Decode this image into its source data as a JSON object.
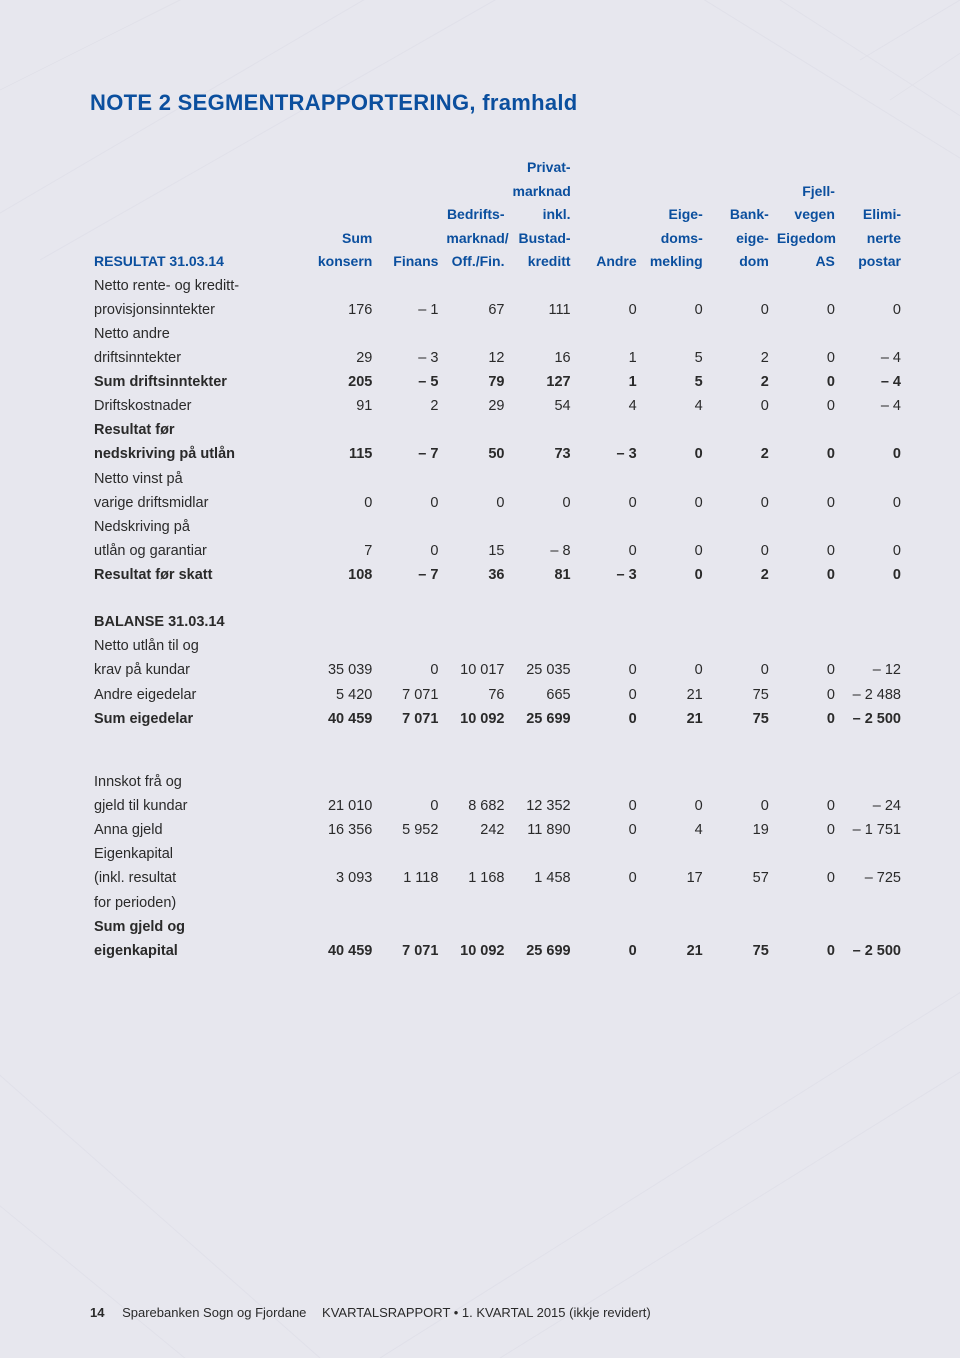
{
  "title": "NOTE 2  SEGMENTRAPPORTERING, framhald",
  "columns": [
    {
      "l1": "",
      "l2": "",
      "l3": "",
      "l4": "RESULTAT 31.03.14"
    },
    {
      "l1": "",
      "l2": "",
      "l3": "Sum",
      "l4": "konsern"
    },
    {
      "l1": "",
      "l2": "",
      "l3": "",
      "l4": "Finans"
    },
    {
      "l1": "",
      "l2": "Bedrifts-",
      "l3": "marknad/",
      "l4": "Off./Fin."
    },
    {
      "l1": "Privat-",
      "l2": "marknad",
      "l3": "inkl.",
      "l4": "Bustad-",
      "l5": "kreditt"
    },
    {
      "l1": "",
      "l2": "",
      "l3": "",
      "l4": "Andre"
    },
    {
      "l1": "",
      "l2": "Eige-",
      "l3": "doms-",
      "l4": "mekling"
    },
    {
      "l1": "",
      "l2": "Bank-",
      "l3": "eige-",
      "l4": "dom"
    },
    {
      "l1": "Fjell-",
      "l2": "vegen",
      "l3": "Eigedom",
      "l4": "AS"
    },
    {
      "l1": "",
      "l2": "Elimi-",
      "l3": "nerte",
      "l4": "postar"
    }
  ],
  "rows": [
    {
      "type": "data",
      "label_lines": [
        "Netto rente- og kreditt-",
        "provisjonsinntekter"
      ],
      "cells": [
        "176",
        "– 1",
        "67",
        "111",
        "0",
        "0",
        "0",
        "0",
        "0"
      ]
    },
    {
      "type": "data",
      "label_lines": [
        "Netto andre",
        "driftsinntekter"
      ],
      "cells": [
        "29",
        "– 3",
        "12",
        "16",
        "1",
        "5",
        "2",
        "0",
        "– 4"
      ]
    },
    {
      "type": "bold",
      "label_lines": [
        "Sum driftsinntekter"
      ],
      "cells": [
        "205",
        "– 5",
        "79",
        "127",
        "1",
        "5",
        "2",
        "0",
        "– 4"
      ]
    },
    {
      "type": "data",
      "label_lines": [
        "Driftskostnader"
      ],
      "cells": [
        "91",
        "2",
        "29",
        "54",
        "4",
        "4",
        "0",
        "0",
        "– 4"
      ]
    },
    {
      "type": "bold",
      "label_lines": [
        "Resultat før",
        "nedskriving på utlån"
      ],
      "cells": [
        "115",
        "– 7",
        "50",
        "73",
        "– 3",
        "0",
        "2",
        "0",
        "0"
      ]
    },
    {
      "type": "data",
      "label_lines": [
        "Netto vinst på",
        "varige driftsmidlar"
      ],
      "cells": [
        "0",
        "0",
        "0",
        "0",
        "0",
        "0",
        "0",
        "0",
        "0"
      ]
    },
    {
      "type": "data",
      "label_lines": [
        "Nedskriving på",
        "utlån og garantiar"
      ],
      "cells": [
        "7",
        "0",
        "15",
        "– 8",
        "0",
        "0",
        "0",
        "0",
        "0"
      ]
    },
    {
      "type": "bold",
      "label_lines": [
        "Resultat før skatt"
      ],
      "cells": [
        "108",
        "– 7",
        "36",
        "81",
        "– 3",
        "0",
        "2",
        "0",
        "0"
      ]
    },
    {
      "type": "section",
      "label_lines": [
        "BALANSE 31.03.14"
      ]
    },
    {
      "type": "data",
      "label_lines": [
        "Netto utlån til og",
        "krav på kundar"
      ],
      "cells": [
        "35 039",
        "0",
        "10 017",
        "25 035",
        "0",
        "0",
        "0",
        "0",
        "– 12"
      ]
    },
    {
      "type": "data",
      "label_lines": [
        "Andre eigedelar"
      ],
      "cells": [
        "5 420",
        "7 071",
        "76",
        "665",
        "0",
        "21",
        "75",
        "0",
        "– 2 488"
      ]
    },
    {
      "type": "bold",
      "label_lines": [
        "Sum eigedelar"
      ],
      "cells": [
        "40 459",
        "7 071",
        "10 092",
        "25 699",
        "0",
        "21",
        "75",
        "0",
        "– 2 500"
      ]
    },
    {
      "type": "spacer"
    },
    {
      "type": "data",
      "label_lines": [
        "Innskot frå og",
        "gjeld til kundar"
      ],
      "cells": [
        "21 010",
        "0",
        "8 682",
        "12 352",
        "0",
        "0",
        "0",
        "0",
        "– 24"
      ]
    },
    {
      "type": "data",
      "label_lines": [
        "Anna gjeld"
      ],
      "cells": [
        "16 356",
        "5 952",
        "242",
        "11 890",
        "0",
        "4",
        "19",
        "0",
        "– 1 751"
      ]
    },
    {
      "type": "data",
      "label_lines": [
        "Eigenkapital",
        "(inkl. resultat",
        "for perioden)"
      ],
      "cells": [
        "3 093",
        "1 118",
        "1 168",
        "1 458",
        "0",
        "17",
        "57",
        "0",
        "– 725"
      ]
    },
    {
      "type": "bold",
      "label_lines": [
        "Sum gjeld og",
        "eigenkapital"
      ],
      "cells": [
        "40 459",
        "7 071",
        "10 092",
        "25 699",
        "0",
        "21",
        "75",
        "0",
        "– 2 500"
      ]
    }
  ],
  "footer": {
    "page": "14",
    "brand": "Sparebanken Sogn og Fjordane",
    "rest": "KVARTALSRAPPORT • 1. KVARTAL 2015 (ikkje revidert)"
  },
  "colors": {
    "bg": "#e7e7ee",
    "heading": "#0b4f9e",
    "text": "#2a2a2a",
    "pattern": "#c9c9d4"
  }
}
